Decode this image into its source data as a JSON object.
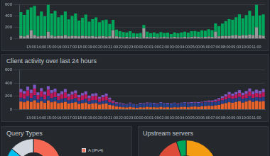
{
  "chart_data": [
    {
      "type": "bar",
      "stacked": true,
      "grid": true,
      "categories": [
        null,
        null,
        null,
        "13:00",
        null,
        null,
        "14:00",
        null,
        null,
        "15:00",
        null,
        null,
        "16:00",
        null,
        null,
        "17:00",
        null,
        null,
        "18:00",
        null,
        null,
        "19:00",
        null,
        null,
        "20:00",
        null,
        null,
        "21:00",
        null,
        null,
        "22:00",
        null,
        null,
        "23:00",
        null,
        null,
        "00:00",
        null,
        null,
        "01:00",
        null,
        null,
        "02:00",
        null,
        null,
        "03:00",
        null,
        null,
        "04:00",
        null,
        null,
        "05:00",
        null,
        null,
        "06:00",
        null,
        null,
        "07:00",
        null,
        null,
        "08:00",
        null,
        null,
        "09:00",
        null,
        null,
        "10:00",
        null,
        null,
        "11:00",
        null,
        null
      ],
      "series": [
        {
          "color": "#999999",
          "values": [
            50,
            40,
            60,
            150,
            60,
            40,
            50,
            45,
            120,
            55,
            40,
            50,
            45,
            60,
            40,
            50,
            45,
            40,
            50,
            45,
            40,
            45,
            35,
            40,
            45,
            35,
            40,
            150,
            40,
            30,
            25,
            30,
            20,
            25,
            30,
            20,
            180,
            30,
            25,
            30,
            20,
            25,
            30,
            25,
            20,
            30,
            25,
            20,
            30,
            25,
            30,
            35,
            30,
            25,
            30,
            35,
            30,
            120,
            40,
            45,
            50,
            45,
            55,
            60,
            50,
            60,
            55,
            70,
            60,
            200,
            60,
            50
          ]
        },
        {
          "color": "#00a65a",
          "values": [
            420,
            380,
            450,
            400,
            520,
            360,
            430,
            350,
            480,
            390,
            450,
            330,
            370,
            420,
            300,
            350,
            400,
            280,
            320,
            380,
            260,
            300,
            340,
            250,
            280,
            300,
            220,
            180,
            120,
            100,
            90,
            80,
            110,
            70,
            60,
            80,
            60,
            90,
            70,
            80,
            70,
            90,
            70,
            80,
            60,
            80,
            70,
            90,
            90,
            80,
            100,
            100,
            90,
            120,
            110,
            130,
            120,
            150,
            180,
            220,
            260,
            300,
            280,
            320,
            380,
            300,
            360,
            420,
            340,
            400,
            350,
            380
          ]
        }
      ],
      "ylim": [
        0,
        600
      ],
      "yticks": [
        0,
        200,
        400,
        600
      ]
    },
    {
      "type": "bar",
      "stacked": true,
      "grid": true,
      "title": "Client activity over last 24 hours",
      "categories": [
        null,
        null,
        null,
        "13:00",
        null,
        null,
        "14:00",
        null,
        null,
        "15:00",
        null,
        null,
        "16:00",
        null,
        null,
        "17:00",
        null,
        null,
        "18:00",
        null,
        null,
        "19:00",
        null,
        null,
        "20:00",
        null,
        null,
        "21:00",
        null,
        null,
        "22:00",
        null,
        null,
        "23:00",
        null,
        null,
        "00:00",
        null,
        null,
        "01:00",
        null,
        null,
        "02:00",
        null,
        null,
        "03:00",
        null,
        null,
        "04:00",
        null,
        null,
        "05:00",
        null,
        null,
        "06:00",
        null,
        null,
        "07:00",
        null,
        null,
        "08:00",
        null,
        null,
        "09:00",
        null,
        null,
        "10:00",
        null,
        null,
        "11:00",
        null,
        null
      ],
      "series": [
        {
          "color": "#e8632b",
          "values": [
            120,
            110,
            130,
            115,
            140,
            105,
            125,
            100,
            135,
            110,
            120,
            95,
            105,
            115,
            90,
            100,
            110,
            85,
            95,
            105,
            80,
            90,
            95,
            75,
            85,
            90,
            70,
            60,
            45,
            40,
            35,
            30,
            40,
            30,
            25,
            35,
            30,
            40,
            35,
            35,
            30,
            40,
            30,
            35,
            28,
            35,
            30,
            40,
            38,
            35,
            42,
            45,
            40,
            48,
            50,
            55,
            52,
            60,
            70,
            85,
            95,
            110,
            100,
            115,
            125,
            105,
            120,
            135,
            115,
            130,
            120,
            125
          ]
        },
        {
          "color": "#27408b",
          "values": [
            60,
            55,
            70,
            60,
            75,
            50,
            65,
            55,
            70,
            60,
            65,
            50,
            55,
            60,
            50,
            55,
            60,
            45,
            50,
            55,
            45,
            50,
            50,
            40,
            45,
            50,
            40,
            40,
            45,
            50,
            40,
            45,
            50,
            45,
            40,
            50,
            55,
            50,
            60,
            55,
            50,
            60,
            55,
            50,
            55,
            60,
            50,
            55,
            60,
            55,
            60,
            55,
            60,
            55,
            60,
            55,
            60,
            55,
            60,
            55,
            60,
            65,
            60,
            55,
            65,
            60,
            55,
            65,
            60,
            55,
            60,
            65
          ]
        },
        {
          "color": "#c2185b",
          "values": [
            80,
            70,
            90,
            75,
            100,
            65,
            85,
            70,
            95,
            75,
            80,
            60,
            70,
            85,
            55,
            70,
            75,
            55,
            65,
            70,
            50,
            60,
            60,
            45,
            55,
            60,
            40,
            20,
            10,
            5,
            5,
            0,
            5,
            0,
            0,
            5,
            0,
            5,
            0,
            0,
            5,
            0,
            0,
            5,
            0,
            0,
            5,
            0,
            0,
            5,
            0,
            5,
            0,
            5,
            5,
            10,
            10,
            15,
            20,
            30,
            40,
            50,
            45,
            55,
            60,
            50,
            60,
            70,
            55,
            65,
            60,
            70
          ]
        },
        {
          "color": "#7e57c2",
          "values": [
            50,
            45,
            55,
            50,
            60,
            40,
            50,
            45,
            55,
            50,
            50,
            40,
            45,
            50,
            40,
            45,
            45,
            35,
            40,
            45,
            35,
            40,
            40,
            30,
            35,
            40,
            30,
            15,
            10,
            10,
            10,
            8,
            10,
            8,
            10,
            10,
            10,
            12,
            10,
            10,
            8,
            10,
            10,
            12,
            10,
            10,
            8,
            10,
            10,
            12,
            10,
            10,
            12,
            10,
            12,
            15,
            15,
            20,
            25,
            30,
            35,
            40,
            35,
            40,
            45,
            40,
            45,
            50,
            45,
            50,
            45,
            50
          ]
        }
      ],
      "ylim": [
        0,
        600
      ],
      "yticks": [
        0,
        200,
        400,
        600
      ]
    },
    {
      "type": "doughnut",
      "title": "Query Types",
      "legend": "right",
      "categories": [
        "A (IPv4)",
        null,
        null,
        null
      ],
      "values": [
        58,
        18,
        10,
        14
      ],
      "colors": [
        "#f56954",
        "#3c8dbc",
        "#00c0ef",
        "#d2d6de"
      ]
    },
    {
      "type": "doughnut",
      "title": "Upstream servers",
      "categories": [
        null,
        null,
        null
      ],
      "values": [
        55,
        40,
        5
      ],
      "colors": [
        "#f39c12",
        "#dd4b39",
        "#00a65a"
      ]
    }
  ]
}
